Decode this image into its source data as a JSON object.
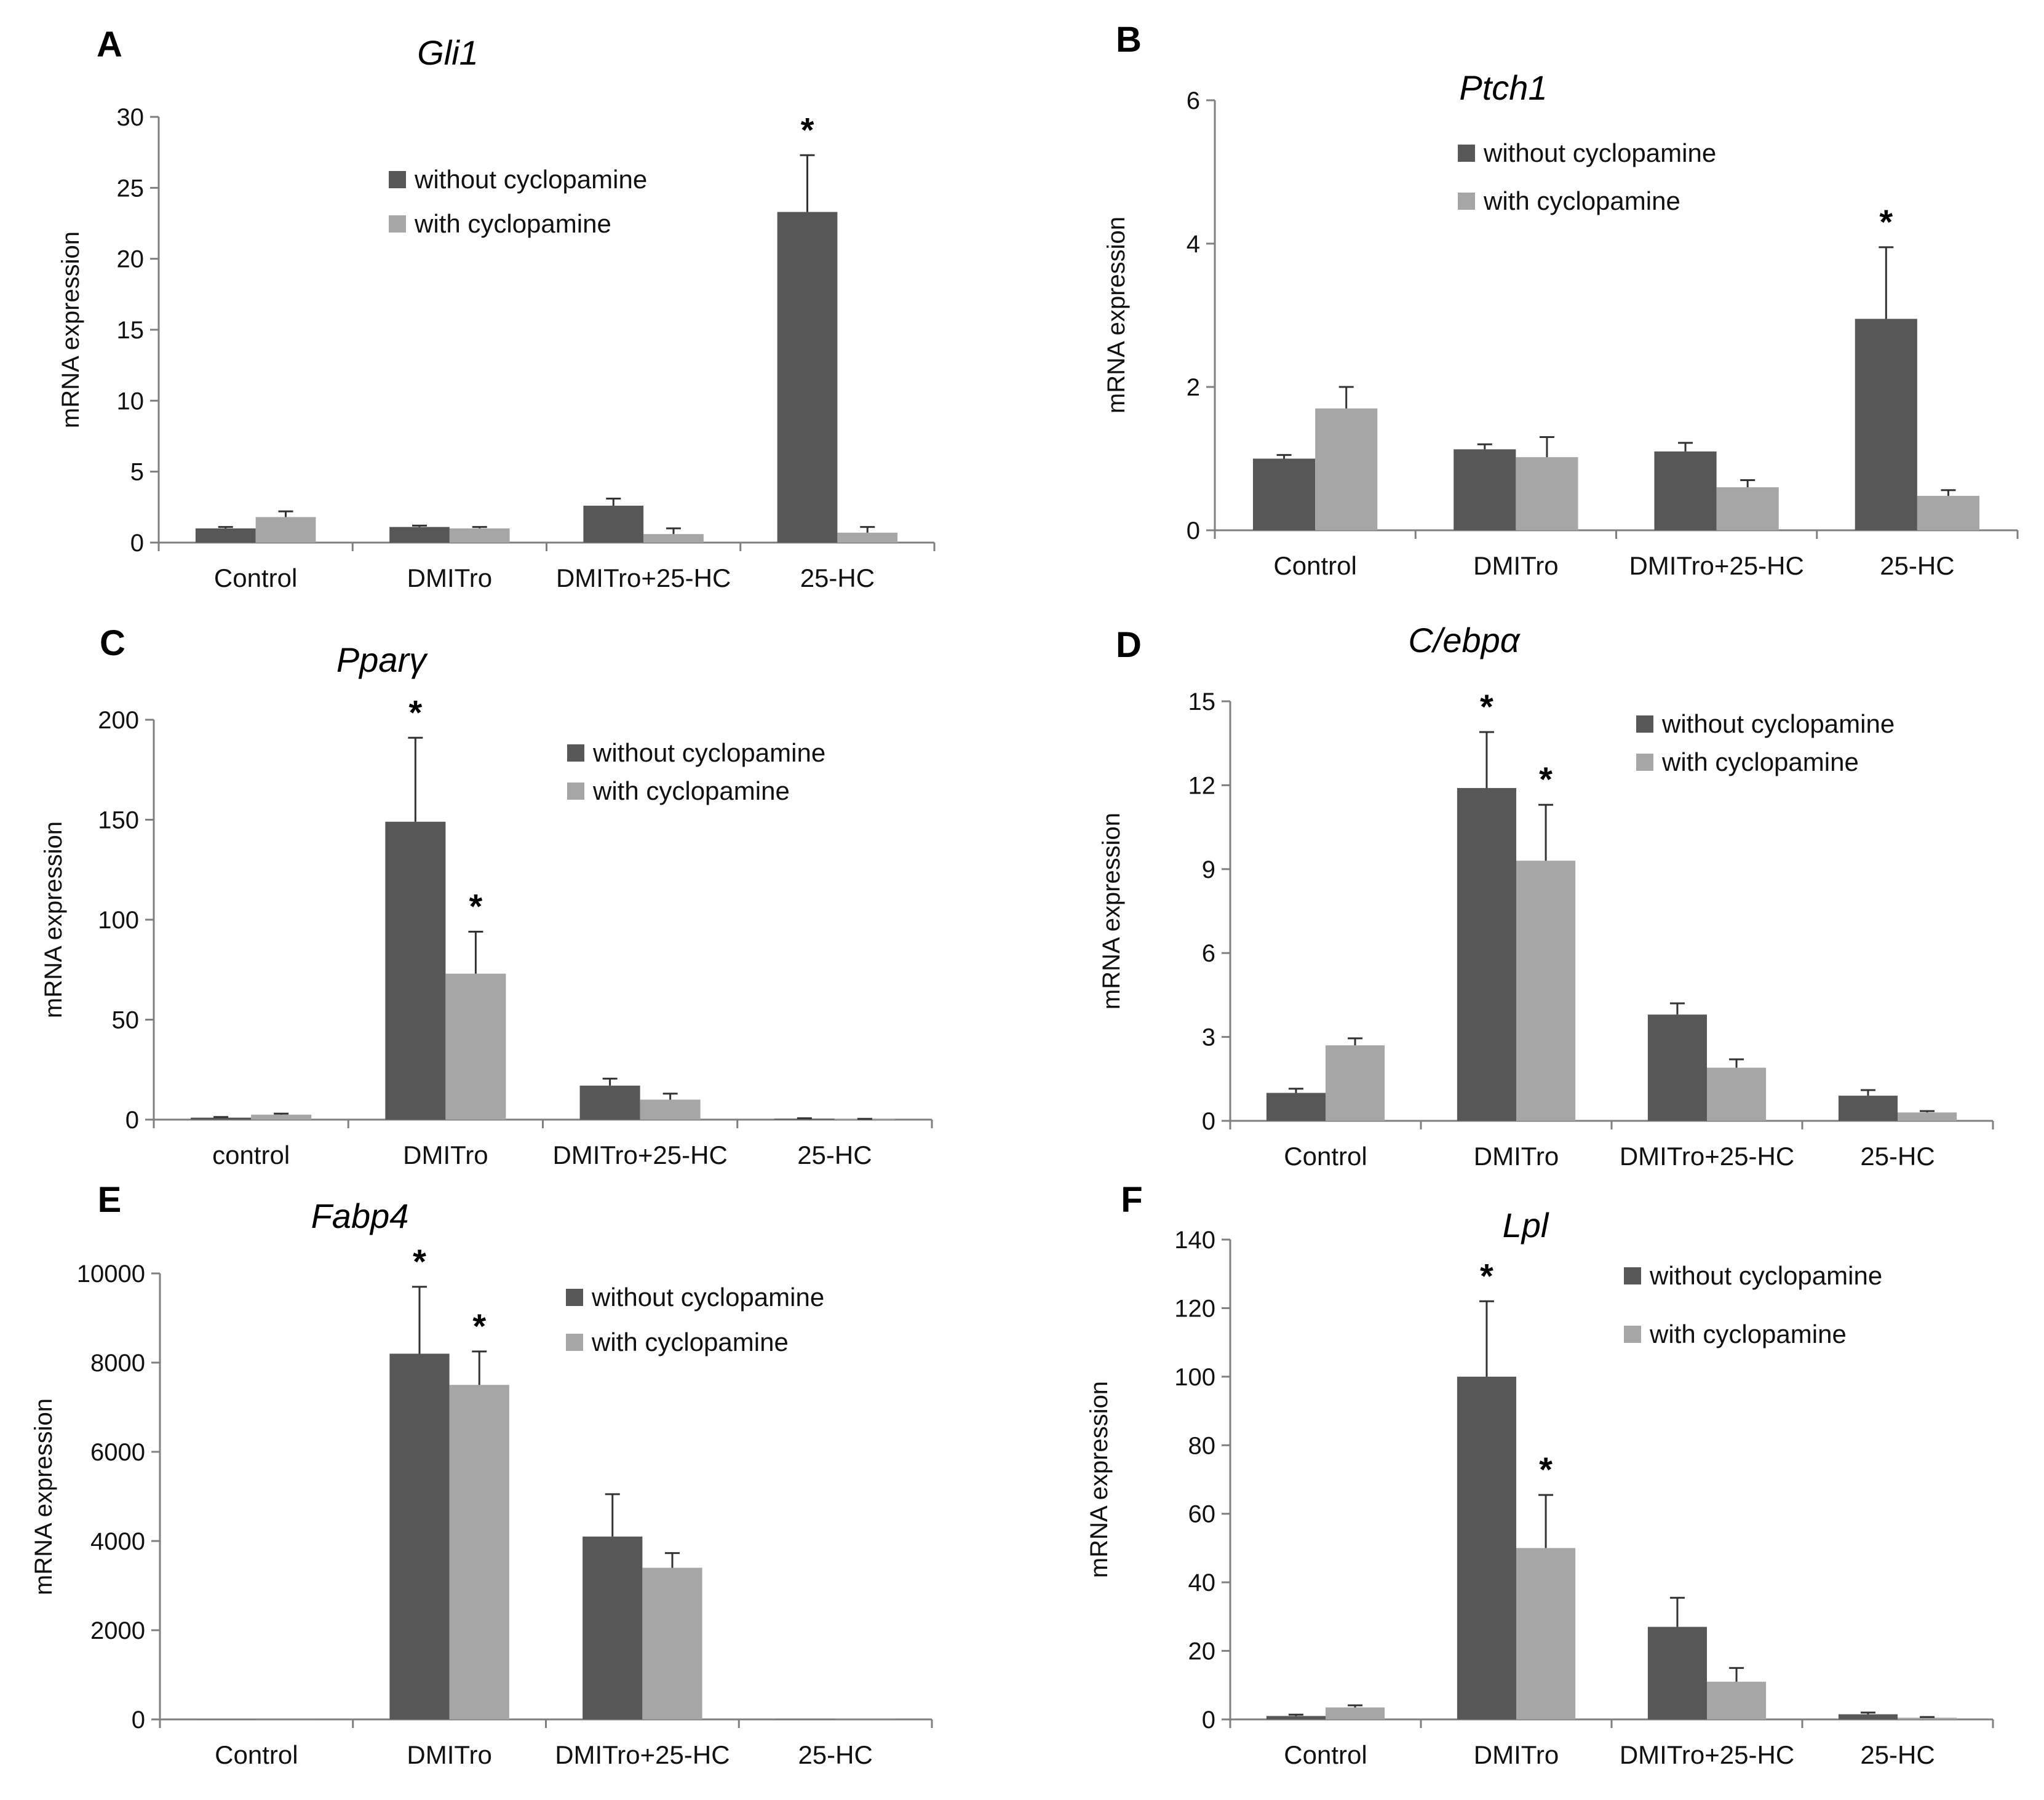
{
  "colors": {
    "without": "#575757",
    "with": "#a6a6a6",
    "axis": "#7f7f7f"
  },
  "chart_data": [
    {
      "panel": "A",
      "type": "bar",
      "title": "Gli1",
      "ylabel": "mRNA expression",
      "categories": [
        "Control",
        "DMITro",
        "DMITro+25-HC",
        "25-HC"
      ],
      "ylim": [
        0,
        30
      ],
      "yticks": [
        "0",
        "5",
        "10",
        "15",
        "20",
        "25",
        "30"
      ],
      "legend": "top-center",
      "series": [
        {
          "name": "without cyclopamine",
          "values": [
            1.0,
            1.1,
            2.6,
            23.3
          ],
          "errors": [
            0.1,
            0.1,
            0.5,
            4.0
          ]
        },
        {
          "name": "with cyclopamine",
          "values": [
            1.8,
            1.0,
            0.6,
            0.7
          ],
          "errors": [
            0.4,
            0.1,
            0.4,
            0.4
          ]
        }
      ],
      "significance": [
        {
          "series": 0,
          "category": 3,
          "label": "*"
        }
      ]
    },
    {
      "panel": "B",
      "type": "bar",
      "title": "Ptch1",
      "ylabel": "mRNA expression",
      "categories": [
        "Control",
        "DMITro",
        "DMITro+25-HC",
        "25-HC"
      ],
      "ylim": [
        0,
        6
      ],
      "yticks": [
        "0",
        "2",
        "4",
        "6"
      ],
      "legend": "top-center",
      "series": [
        {
          "name": "without cyclopamine",
          "values": [
            1.0,
            1.13,
            1.1,
            2.95
          ],
          "errors": [
            0.05,
            0.07,
            0.12,
            1.0
          ]
        },
        {
          "name": "with cyclopamine",
          "values": [
            1.7,
            1.02,
            0.6,
            0.48
          ],
          "errors": [
            0.3,
            0.28,
            0.1,
            0.08
          ]
        }
      ],
      "significance": [
        {
          "series": 0,
          "category": 3,
          "label": "*"
        }
      ]
    },
    {
      "panel": "C",
      "type": "bar",
      "title": "Pparγ",
      "ylabel": "mRNA expression",
      "categories": [
        "control",
        "DMITro",
        "DMITro+25-HC",
        "25-HC"
      ],
      "ylim": [
        0,
        200
      ],
      "yticks": [
        "0",
        "50",
        "100",
        "150",
        "200"
      ],
      "legend": "top-right",
      "series": [
        {
          "name": "without cyclopamine",
          "values": [
            1.0,
            149,
            17,
            0.5
          ],
          "errors": [
            0.3,
            42,
            3.5,
            0.2
          ]
        },
        {
          "name": "with cyclopamine",
          "values": [
            2.5,
            73,
            10,
            0.3
          ],
          "errors": [
            0.5,
            21,
            3,
            0.1
          ]
        }
      ],
      "significance": [
        {
          "series": 0,
          "category": 1,
          "label": "*"
        },
        {
          "series": 1,
          "category": 1,
          "label": "*"
        }
      ]
    },
    {
      "panel": "D",
      "type": "bar",
      "title": "C/ebpα",
      "ylabel": "mRNA expression",
      "categories": [
        "Control",
        "DMITro",
        "DMITro+25-HC",
        "25-HC"
      ],
      "ylim": [
        0,
        15
      ],
      "yticks": [
        "0",
        "3",
        "6",
        "9",
        "12",
        "15"
      ],
      "legend": "top-right",
      "series": [
        {
          "name": "without cyclopamine",
          "values": [
            1.0,
            11.9,
            3.8,
            0.9
          ],
          "errors": [
            0.15,
            2.0,
            0.4,
            0.2
          ]
        },
        {
          "name": "with cyclopamine",
          "values": [
            2.7,
            9.3,
            1.9,
            0.3
          ],
          "errors": [
            0.25,
            2.0,
            0.3,
            0.05
          ]
        }
      ],
      "significance": [
        {
          "series": 0,
          "category": 1,
          "label": "*"
        },
        {
          "series": 1,
          "category": 1,
          "label": "*"
        }
      ]
    },
    {
      "panel": "E",
      "type": "bar",
      "title": "Fabp4",
      "ylabel": "mRNA expression",
      "categories": [
        "Control",
        "DMITro",
        "DMITro+25-HC",
        "25-HC"
      ],
      "ylim": [
        0,
        10000
      ],
      "yticks": [
        "0",
        "2000",
        "4000",
        "6000",
        "8000",
        "10000"
      ],
      "legend": "top-right",
      "series": [
        {
          "name": "without cyclopamine",
          "values": [
            1,
            8200,
            4100,
            5
          ],
          "errors": [
            0,
            1500,
            950,
            0
          ]
        },
        {
          "name": "with cyclopamine",
          "values": [
            1,
            7500,
            3400,
            3
          ],
          "errors": [
            0,
            750,
            330,
            0
          ]
        }
      ],
      "significance": [
        {
          "series": 0,
          "category": 1,
          "label": "*"
        },
        {
          "series": 1,
          "category": 1,
          "label": "*"
        }
      ]
    },
    {
      "panel": "F",
      "type": "bar",
      "title": "Lpl",
      "ylabel": "mRNA expression",
      "categories": [
        "Control",
        "DMITro",
        "DMITro+25-HC",
        "25-HC"
      ],
      "ylim": [
        0,
        140
      ],
      "yticks": [
        "0",
        "20",
        "40",
        "60",
        "80",
        "100",
        "120",
        "140"
      ],
      "legend": "top-right",
      "series": [
        {
          "name": "without cyclopamine",
          "values": [
            1.0,
            100,
            27,
            1.5
          ],
          "errors": [
            0.4,
            22,
            8.5,
            0.5
          ]
        },
        {
          "name": "with cyclopamine",
          "values": [
            3.5,
            50,
            11,
            0.5
          ],
          "errors": [
            0.6,
            15.5,
            4,
            0.2
          ]
        }
      ],
      "significance": [
        {
          "series": 0,
          "category": 1,
          "label": "*"
        },
        {
          "series": 1,
          "category": 1,
          "label": "*"
        }
      ]
    }
  ]
}
